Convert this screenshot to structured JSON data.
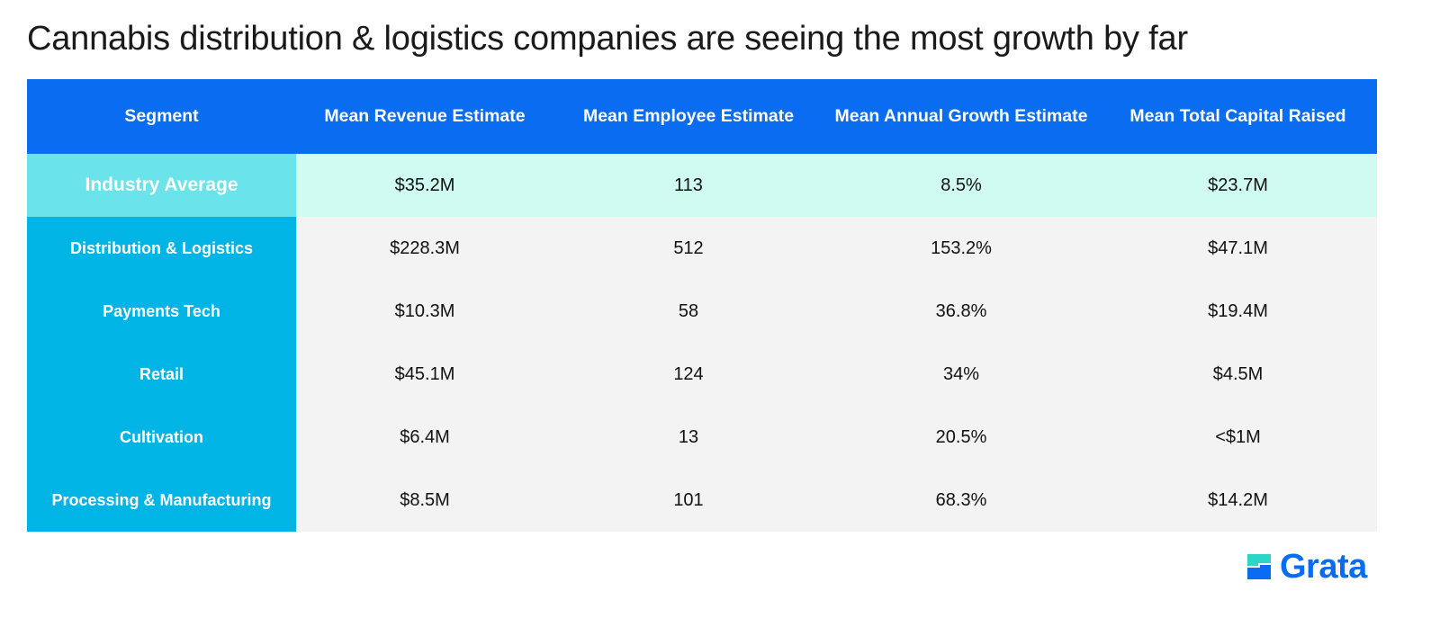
{
  "title": "Cannabis distribution & logistics companies are seeing the most growth by far",
  "chart_data": {
    "type": "table",
    "title": "Cannabis distribution & logistics companies are seeing the most growth by far",
    "columns": [
      "Segment",
      "Mean Revenue Estimate",
      "Mean Employee Estimate",
      "Mean Annual Growth Estimate",
      "Mean Total Capital Raised"
    ],
    "rows": [
      [
        "Industry Average",
        "$35.2M",
        "113",
        "8.5%",
        "$23.7M"
      ],
      [
        "Distribution & Logistics",
        "$228.3M",
        "512",
        "153.2%",
        "$47.1M"
      ],
      [
        "Payments Tech",
        "$10.3M",
        "58",
        "36.8%",
        "$19.4M"
      ],
      [
        "Retail",
        "$45.1M",
        "124",
        "34%",
        "$4.5M"
      ],
      [
        "Cultivation",
        "$6.4M",
        "13",
        "20.5%",
        "<$1M"
      ],
      [
        "Processing & Manufacturing",
        "$8.5M",
        "101",
        "68.3%",
        "$14.2M"
      ]
    ]
  },
  "brand": {
    "name": "Grata",
    "logo_icon": "grata-logo-icon",
    "color_primary": "#0a6cf0",
    "color_secondary": "#00b4e5",
    "color_accent": "#6ae3ea"
  }
}
